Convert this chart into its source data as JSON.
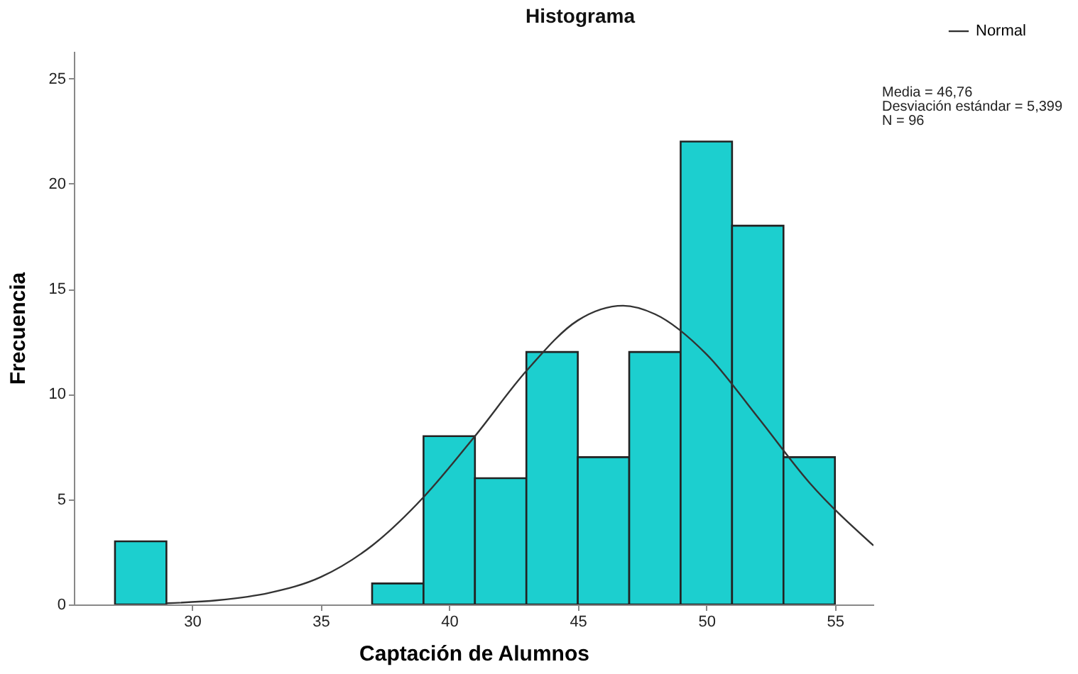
{
  "chart_data": {
    "type": "histogram",
    "title": "Histograma",
    "xlabel": "Captación de Alumnos",
    "ylabel": "Frecuencia",
    "bins": [
      27,
      29,
      31,
      33,
      35,
      37,
      39,
      41,
      43,
      45,
      47,
      49,
      51,
      53,
      55
    ],
    "values": [
      3,
      0,
      0,
      0,
      0,
      1,
      8,
      6,
      12,
      7,
      12,
      22,
      18,
      7
    ],
    "color": "#1ccfcf",
    "series": [
      {
        "name": "Normal",
        "type": "line",
        "color": "#333333",
        "x": [
          29,
          31,
          33,
          35,
          37,
          39,
          41,
          43,
          45,
          46.76,
          48,
          50,
          52,
          54,
          56.5
        ],
        "values": [
          0.06,
          0.2,
          0.55,
          1.3,
          2.8,
          5.1,
          8.0,
          11.1,
          13.5,
          14.2,
          13.8,
          11.9,
          8.9,
          5.8,
          2.8
        ]
      }
    ],
    "xlim": [
      25.4,
      56.5
    ],
    "xticks": [
      30,
      35,
      40,
      45,
      50,
      55
    ],
    "ylim": [
      0,
      26.3
    ],
    "yticks": [
      0,
      5,
      10,
      15,
      20,
      25
    ],
    "grid": false,
    "legend": "top right",
    "annotations": [
      "Media = 46,76",
      "Desviación estándar = 5,399",
      "N = 96"
    ]
  }
}
